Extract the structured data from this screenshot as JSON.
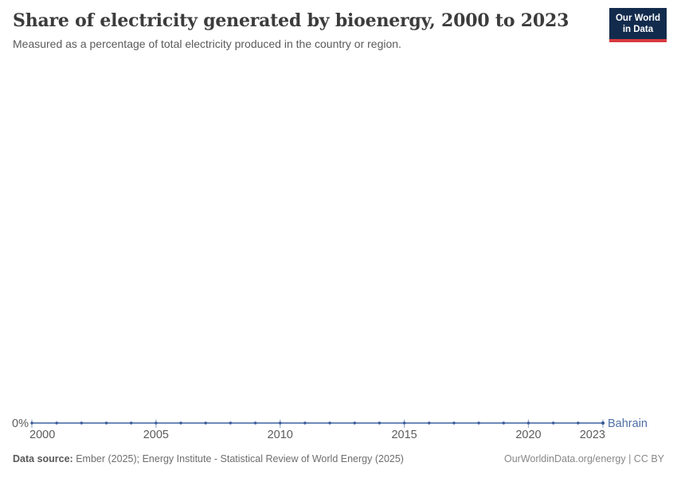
{
  "header": {
    "title": "Share of electricity generated by bioenergy, 2000 to 2023",
    "subtitle": "Measured as a percentage of total electricity produced in the country or region."
  },
  "logo": {
    "line1": "Our World",
    "line2": "in Data"
  },
  "chart_data": {
    "type": "line",
    "title": "Share of electricity generated by bioenergy, 2000 to 2023",
    "subtitle": "Measured as a percentage of total electricity produced in the country or region.",
    "x": [
      2000,
      2001,
      2002,
      2003,
      2004,
      2005,
      2006,
      2007,
      2008,
      2009,
      2010,
      2011,
      2012,
      2013,
      2014,
      2015,
      2016,
      2017,
      2018,
      2019,
      2020,
      2021,
      2022,
      2023
    ],
    "series": [
      {
        "name": "Bahrain",
        "values": [
          0,
          0,
          0,
          0,
          0,
          0,
          0,
          0,
          0,
          0,
          0,
          0,
          0,
          0,
          0,
          0,
          0,
          0,
          0,
          0,
          0,
          0,
          0,
          0
        ],
        "unit": "%",
        "line_color": "#5878af",
        "point_color": "#3a5a99",
        "label_color": "#4d6fa5"
      }
    ],
    "x_ticks": [
      2000,
      2005,
      2010,
      2015,
      2020,
      2023
    ],
    "y_ticks": [
      {
        "value": 0,
        "label": "0%"
      }
    ],
    "ylim": [
      0,
      0
    ],
    "xlabel": "",
    "ylabel": "",
    "grid": false,
    "legend_position": "end-of-line"
  },
  "footer": {
    "datasource_label": "Data source:",
    "datasource_text": " Ember (2025); Energy Institute - Statistical Review of World Energy (2025)",
    "rights": "OurWorldinData.org/energy | CC BY"
  },
  "colors": {
    "axis_text": "#5c5c5c",
    "tick_mark": "#9fb0c9",
    "logo_bg": "#122b4d",
    "logo_bar": "#d73a3f"
  }
}
